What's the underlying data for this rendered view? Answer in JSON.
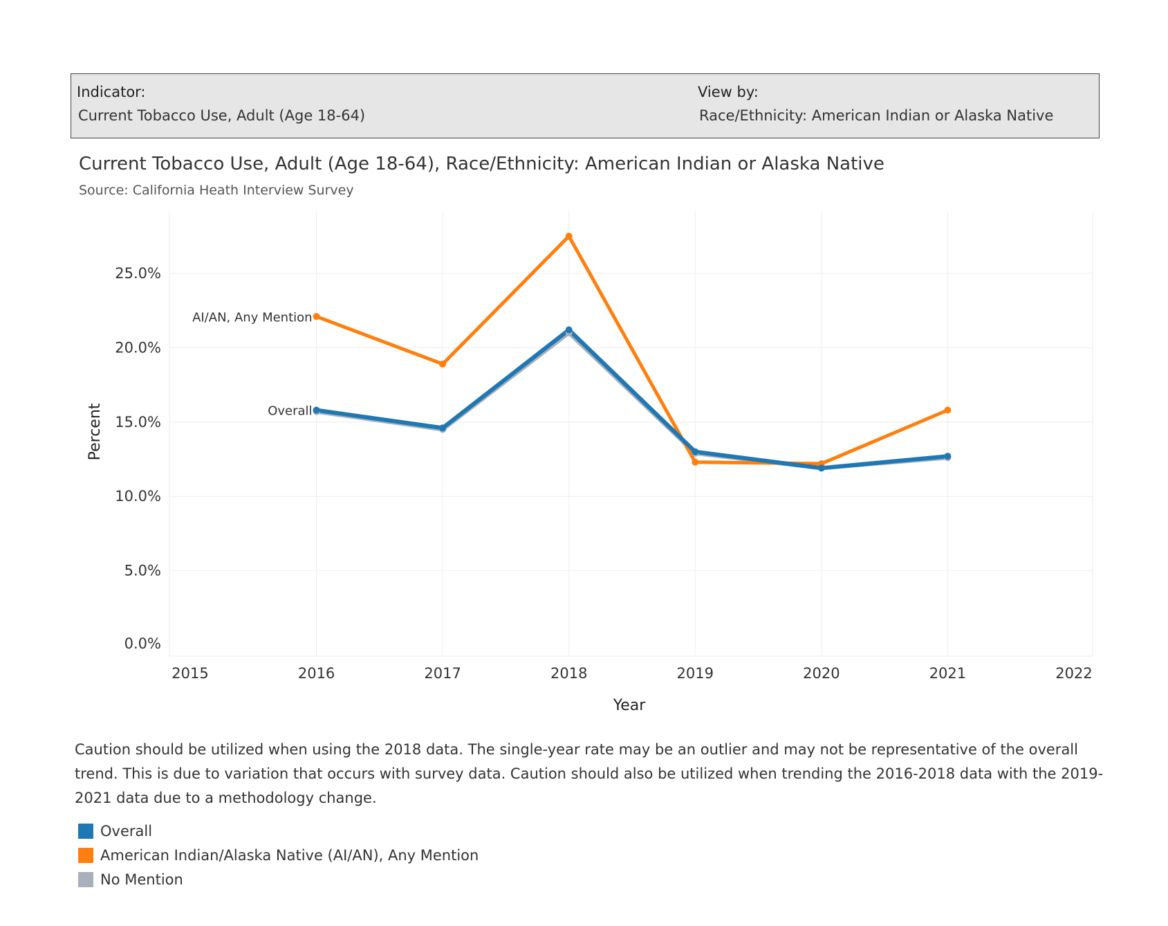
{
  "filters": {
    "indicator_label": "Indicator:",
    "indicator_value": "Current Tobacco Use, Adult (Age 18-64)",
    "viewby_label": "View by:",
    "viewby_value": "Race/Ethnicity: American Indian or Alaska Native"
  },
  "caution_text": "Caution should be utilized when using the 2018 data. The single-year rate may be an outlier and may not be representative of the overall trend. This is due to variation that occurs with survey data. Caution should also be utilized when trending the 2016-2018 data with the 2019-2021 data due to a methodology change.",
  "legend": [
    {
      "label": "Overall",
      "color": "#1f77b4"
    },
    {
      "label": "American Indian/Alaska Native (AI/AN), Any Mention",
      "color": "#ff7f0e"
    },
    {
      "label": "No Mention",
      "color": "#a9b0bb"
    }
  ],
  "chart_data": {
    "type": "line",
    "title": "Current Tobacco Use, Adult (Age 18-64), Race/Ethnicity: American Indian or Alaska Native",
    "subtitle": "Source: California Heath Interview Survey",
    "xlabel": "Year",
    "ylabel": "Percent",
    "x_ticks": [
      "2015",
      "2016",
      "2017",
      "2018",
      "2019",
      "2020",
      "2021",
      "2022"
    ],
    "y_ticks": [
      "0.0%",
      "5.0%",
      "10.0%",
      "15.0%",
      "20.0%",
      "25.0%"
    ],
    "xlim": [
      2015,
      2022
    ],
    "ylim": [
      0,
      29
    ],
    "grid": true,
    "x": [
      2016,
      2017,
      2018,
      2019,
      2020,
      2021
    ],
    "series": [
      {
        "name": "No Mention",
        "color": "#a9b0bb",
        "values": [
          15.7,
          14.5,
          21.0,
          12.9,
          11.9,
          12.6
        ]
      },
      {
        "name": "AI/AN, Any Mention",
        "color": "#ff7f0e",
        "values": [
          22.1,
          18.9,
          27.5,
          12.3,
          12.2,
          15.8
        ]
      },
      {
        "name": "Overall",
        "color": "#1f77b4",
        "values": [
          15.8,
          14.6,
          21.2,
          13.0,
          11.9,
          12.7
        ]
      }
    ]
  }
}
